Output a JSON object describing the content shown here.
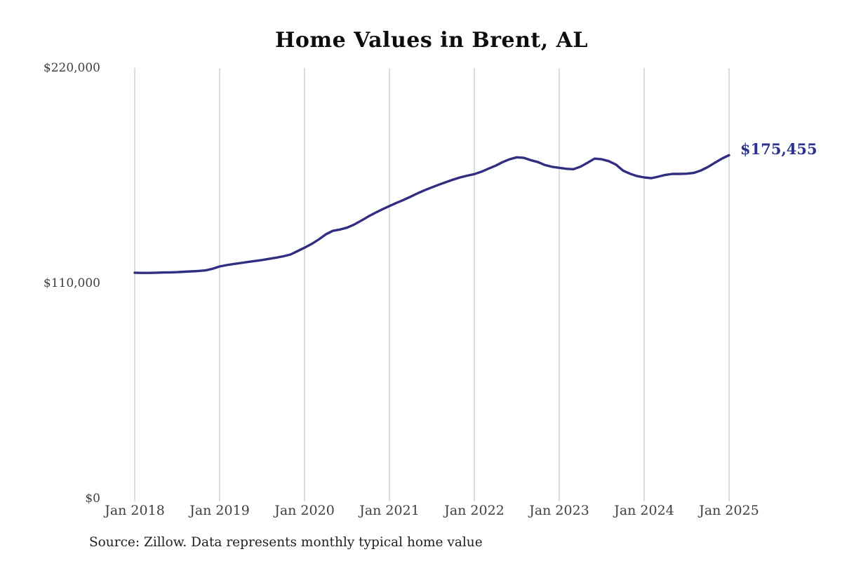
{
  "source": "Source: Zillow. Data represents monthly typical home value",
  "chart_data": {
    "type": "line",
    "title": "Home Values in Brent, AL",
    "xlabel": "",
    "ylabel": "",
    "frequency": "monthly",
    "x_start": "Jan 2018",
    "x_end": "Jan 2025",
    "x_tick_labels": [
      "Jan 2018",
      "Jan 2019",
      "Jan 2020",
      "Jan 2021",
      "Jan 2022",
      "Jan 2023",
      "Jan 2024",
      "Jan 2025"
    ],
    "y_ticks": [
      {
        "label": "$0",
        "value": 0
      },
      {
        "label": "$110,000",
        "value": 110000
      },
      {
        "label": "$220,000",
        "value": 220000
      }
    ],
    "ylim": [
      0,
      220000
    ],
    "grid": "vertical-only",
    "legend": "none",
    "series": [
      {
        "name": "Monthly typical home value",
        "values": [
          115400,
          115300,
          115300,
          115400,
          115500,
          115600,
          115700,
          115900,
          116100,
          116300,
          116600,
          117400,
          118600,
          119300,
          119900,
          120400,
          120900,
          121400,
          121900,
          122500,
          123100,
          123800,
          124700,
          126400,
          128200,
          130100,
          132400,
          135000,
          136800,
          137500,
          138400,
          140000,
          142000,
          144100,
          146000,
          147800,
          149500,
          151100,
          152600,
          154300,
          156000,
          157600,
          159000,
          160400,
          161700,
          163000,
          164100,
          165000,
          165800,
          167000,
          168600,
          170100,
          171900,
          173400,
          174400,
          174100,
          172900,
          171900,
          170400,
          169500,
          169000,
          168500,
          168300,
          169600,
          171600,
          173700,
          173400,
          172400,
          170700,
          167600,
          166000,
          164800,
          164100,
          163700,
          164500,
          165400,
          165900,
          165900,
          166000,
          166400,
          167600,
          169400,
          171600,
          173700,
          175455
        ]
      }
    ],
    "end_label": "$175,455",
    "end_value": 175455,
    "colors": {
      "line": "#312e81",
      "end_label": "#2b318c",
      "grid": "#c9c9c9",
      "title": "#0d0d0d",
      "tick_text": "#3f3f3f",
      "source_text": "#1f1f1f"
    }
  }
}
